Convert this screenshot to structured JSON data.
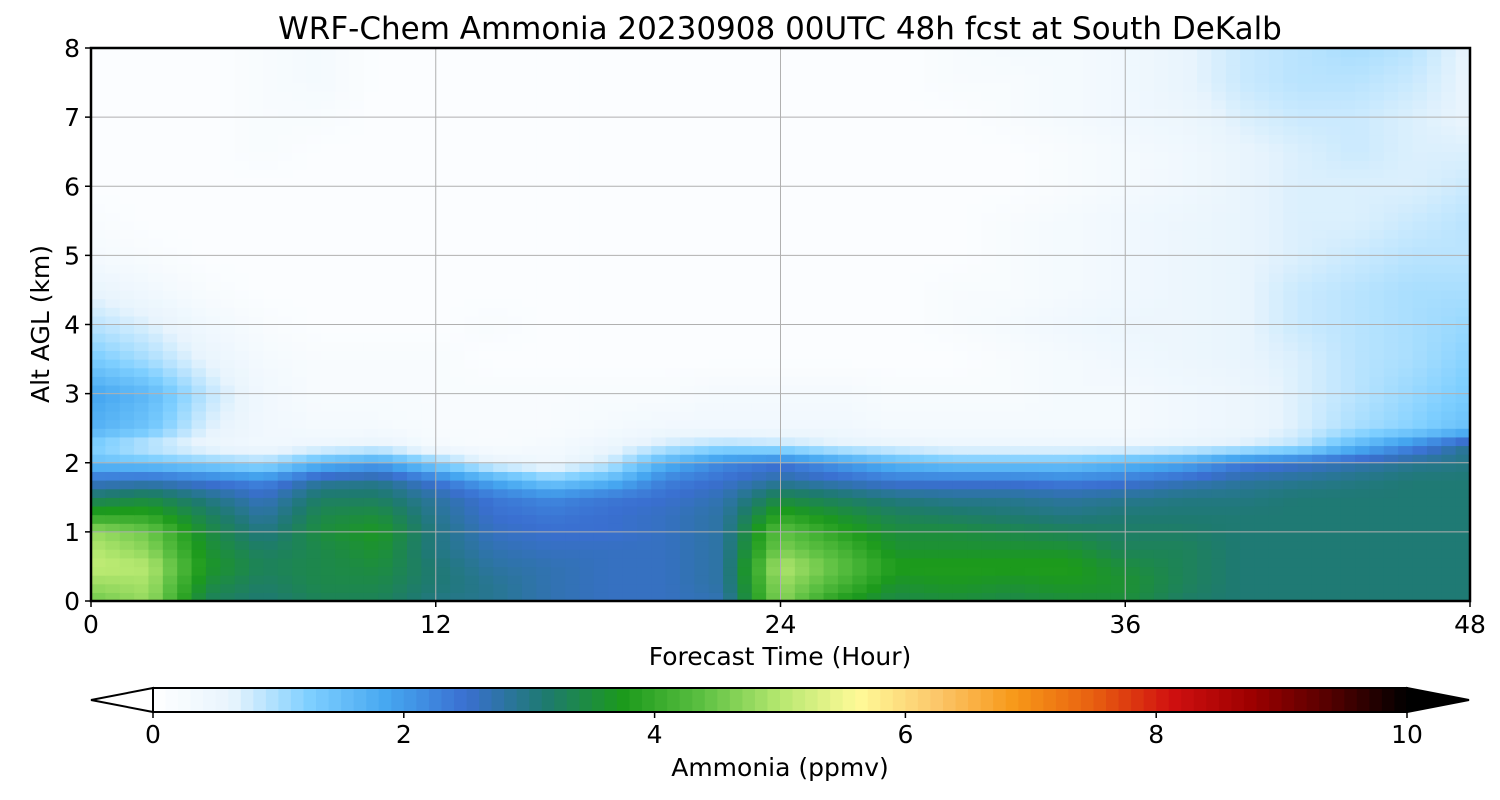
{
  "chart_data": {
    "type": "heatmap",
    "title": "WRF-Chem Ammonia  20230908 00UTC 48h fcst at South DeKalb",
    "xlabel": "Forecast Time (Hour)",
    "ylabel": "Alt AGL (km)",
    "xlim": [
      0,
      48
    ],
    "ylim": [
      0,
      8
    ],
    "x_ticks": [
      0,
      12,
      24,
      36,
      48
    ],
    "y_ticks": [
      0,
      1,
      2,
      3,
      4,
      5,
      6,
      7,
      8
    ],
    "grid": true,
    "colorbar": {
      "label": "Ammonia  (ppmv)",
      "min": 0,
      "max": 10,
      "ticks": [
        0,
        2,
        4,
        6,
        8,
        10
      ],
      "extend": "both",
      "orientation": "horizontal",
      "placement": "bottom",
      "colors": [
        "#ffffff",
        "#e8f4fd",
        "#7ecfff",
        "#45a6f0",
        "#3a6fd0",
        "#1e7a70",
        "#1c9a1c",
        "#5cc042",
        "#b6e870",
        "#fffa98",
        "#fcc76a",
        "#f79818",
        "#e85f10",
        "#d01010",
        "#9e0000",
        "#550000",
        "#000000"
      ]
    },
    "x": [
      0,
      2,
      4,
      6,
      8,
      10,
      12,
      14,
      16,
      18,
      20,
      22,
      24,
      26,
      28,
      30,
      32,
      34,
      36,
      38,
      40,
      42,
      44,
      46,
      48
    ],
    "y": [
      0,
      0.25,
      0.5,
      0.75,
      1,
      1.25,
      1.5,
      1.75,
      2,
      2.25,
      2.5,
      3,
      3.5,
      4,
      4.5,
      5,
      5.5,
      6,
      6.5,
      7,
      7.5,
      8
    ],
    "values": [
      [
        4.5,
        4.8,
        3.3,
        3.1,
        3.3,
        3.3,
        3.0,
        2.9,
        2.7,
        2.6,
        2.6,
        2.7,
        4.7,
        3.8,
        3.4,
        3.5,
        3.4,
        3.5,
        3.5,
        3.2,
        3.1,
        3.1,
        3.1,
        3.1,
        3.1
      ],
      [
        4.8,
        4.9,
        3.5,
        3.2,
        3.4,
        3.4,
        3.1,
        2.9,
        2.7,
        2.6,
        2.6,
        2.8,
        4.8,
        4.2,
        3.6,
        3.7,
        3.6,
        3.7,
        3.6,
        3.3,
        3.1,
        3.1,
        3.1,
        3.1,
        3.1
      ],
      [
        5.1,
        5.0,
        3.7,
        3.3,
        3.4,
        3.5,
        3.1,
        2.8,
        2.7,
        2.6,
        2.6,
        2.8,
        5.0,
        4.4,
        3.8,
        3.8,
        3.8,
        3.8,
        3.5,
        3.3,
        3.1,
        3.1,
        3.1,
        3.1,
        3.1
      ],
      [
        5.0,
        4.7,
        3.6,
        3.2,
        3.4,
        3.6,
        3.0,
        2.7,
        2.6,
        2.6,
        2.6,
        2.8,
        4.6,
        4.2,
        3.6,
        3.6,
        3.6,
        3.6,
        3.3,
        3.3,
        3.1,
        3.1,
        3.1,
        3.1,
        3.1
      ],
      [
        4.8,
        4.5,
        3.5,
        3.0,
        3.5,
        3.7,
        3.0,
        2.6,
        2.5,
        2.5,
        2.6,
        2.8,
        4.4,
        3.9,
        3.5,
        3.5,
        3.4,
        3.3,
        3.2,
        3.2,
        3.1,
        3.1,
        3.1,
        3.1,
        3.1
      ],
      [
        3.9,
        3.9,
        3.3,
        2.8,
        3.4,
        3.5,
        2.9,
        2.5,
        2.4,
        2.5,
        2.6,
        2.8,
        3.9,
        3.6,
        3.3,
        3.2,
        3.1,
        3.0,
        3.1,
        3.1,
        3.1,
        3.1,
        3.1,
        3.1,
        3.1
      ],
      [
        3.2,
        3.4,
        3.0,
        2.6,
        3.2,
        3.2,
        2.8,
        2.4,
        2.2,
        2.4,
        2.5,
        2.7,
        3.4,
        3.2,
        3.0,
        2.9,
        2.9,
        2.8,
        2.9,
        3.0,
        3.0,
        3.1,
        3.1,
        3.1,
        3.1
      ],
      [
        2.5,
        2.6,
        2.4,
        2.2,
        2.8,
        2.9,
        2.4,
        1.8,
        1.3,
        1.6,
        2.3,
        2.5,
        2.8,
        2.6,
        2.4,
        2.4,
        2.4,
        2.3,
        2.4,
        2.6,
        2.8,
        2.9,
        3.0,
        3.1,
        3.1
      ],
      [
        1.5,
        1.4,
        1.2,
        1.0,
        1.6,
        1.9,
        1.2,
        0.6,
        0.4,
        0.8,
        1.7,
        2.2,
        2.4,
        2.0,
        1.6,
        1.4,
        1.4,
        1.4,
        1.6,
        1.8,
        2.3,
        2.5,
        2.7,
        2.9,
        3.0
      ],
      [
        1.2,
        0.8,
        0.5,
        0.4,
        0.5,
        0.6,
        0.3,
        0.2,
        0.3,
        0.5,
        0.8,
        1.0,
        0.9,
        0.7,
        0.6,
        0.5,
        0.5,
        0.5,
        0.5,
        0.6,
        0.7,
        0.9,
        1.6,
        2.2,
        2.9
      ],
      [
        1.7,
        1.4,
        0.7,
        0.4,
        0.3,
        0.3,
        0.2,
        0.2,
        0.2,
        0.3,
        0.4,
        0.4,
        0.4,
        0.4,
        0.3,
        0.3,
        0.3,
        0.3,
        0.3,
        0.4,
        0.5,
        0.7,
        1.0,
        1.2,
        1.5
      ],
      [
        1.9,
        1.6,
        0.9,
        0.4,
        0.2,
        0.2,
        0.2,
        0.2,
        0.2,
        0.2,
        0.2,
        0.3,
        0.3,
        0.3,
        0.2,
        0.2,
        0.2,
        0.3,
        0.3,
        0.4,
        0.5,
        0.7,
        0.9,
        1.1,
        1.3
      ],
      [
        1.3,
        1.0,
        0.6,
        0.3,
        0.2,
        0.2,
        0.2,
        0.1,
        0.1,
        0.1,
        0.1,
        0.1,
        0.1,
        0.1,
        0.1,
        0.1,
        0.2,
        0.3,
        0.4,
        0.5,
        0.6,
        0.7,
        0.9,
        1.0,
        1.2
      ],
      [
        0.9,
        0.7,
        0.4,
        0.2,
        0.1,
        0.1,
        0.1,
        0.2,
        0.1,
        0.1,
        0.1,
        0.1,
        0.1,
        0.1,
        0.1,
        0.2,
        0.3,
        0.4,
        0.5,
        0.5,
        0.6,
        0.8,
        0.9,
        1.0,
        1.1
      ],
      [
        0.6,
        0.4,
        0.2,
        0.1,
        0.1,
        0.1,
        0.1,
        0.1,
        0.1,
        0.1,
        0.1,
        0.1,
        0.1,
        0.1,
        0.1,
        0.2,
        0.2,
        0.3,
        0.4,
        0.5,
        0.6,
        0.8,
        0.9,
        1.0,
        1.0
      ],
      [
        0.3,
        0.2,
        0.1,
        0.1,
        0.1,
        0.1,
        0.1,
        0.1,
        0.1,
        0.1,
        0.1,
        0.1,
        0.1,
        0.1,
        0.1,
        0.1,
        0.2,
        0.3,
        0.4,
        0.5,
        0.6,
        0.7,
        0.8,
        0.9,
        0.9
      ],
      [
        0.2,
        0.1,
        0.1,
        0.1,
        0.1,
        0.1,
        0.1,
        0.1,
        0.1,
        0.1,
        0.1,
        0.1,
        0.1,
        0.1,
        0.1,
        0.1,
        0.2,
        0.3,
        0.4,
        0.5,
        0.6,
        0.7,
        0.7,
        0.8,
        0.9
      ],
      [
        0.1,
        0.1,
        0.1,
        0.1,
        0.1,
        0.1,
        0.1,
        0.1,
        0.1,
        0.1,
        0.1,
        0.1,
        0.1,
        0.1,
        0.1,
        0.1,
        0.1,
        0.2,
        0.3,
        0.4,
        0.6,
        0.7,
        0.7,
        0.7,
        0.8
      ],
      [
        0.1,
        0.1,
        0.1,
        0.2,
        0.1,
        0.1,
        0.1,
        0.1,
        0.1,
        0.1,
        0.1,
        0.1,
        0.1,
        0.1,
        0.1,
        0.1,
        0.1,
        0.2,
        0.3,
        0.4,
        0.6,
        0.7,
        0.8,
        0.7,
        0.7
      ],
      [
        0.1,
        0.1,
        0.1,
        0.2,
        0.2,
        0.1,
        0.1,
        0.1,
        0.1,
        0.1,
        0.1,
        0.1,
        0.1,
        0.1,
        0.1,
        0.1,
        0.2,
        0.3,
        0.4,
        0.5,
        0.7,
        0.8,
        0.8,
        0.7,
        0.6
      ],
      [
        0.1,
        0.1,
        0.1,
        0.2,
        0.3,
        0.1,
        0.1,
        0.1,
        0.1,
        0.1,
        0.1,
        0.1,
        0.1,
        0.1,
        0.1,
        0.2,
        0.2,
        0.3,
        0.4,
        0.6,
        0.8,
        0.9,
        0.9,
        0.8,
        0.6
      ],
      [
        0.1,
        0.1,
        0.1,
        0.2,
        0.3,
        0.1,
        0.1,
        0.1,
        0.1,
        0.1,
        0.1,
        0.1,
        0.1,
        0.1,
        0.1,
        0.2,
        0.3,
        0.3,
        0.4,
        0.6,
        0.8,
        0.9,
        1.0,
        0.9,
        0.6
      ]
    ]
  }
}
